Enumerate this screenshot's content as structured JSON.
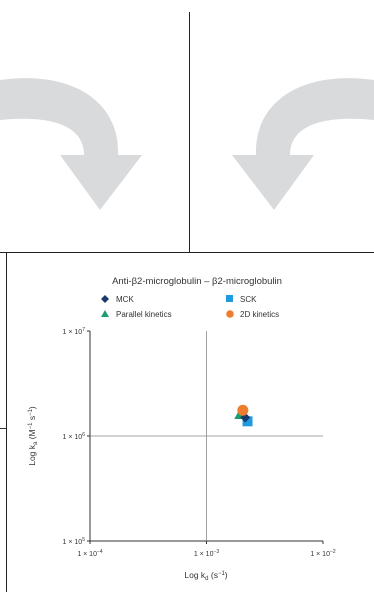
{
  "chart_data": {
    "type": "scatter",
    "title": "Anti-β2-microglobulin – β2-microglobulin",
    "xlabel": {
      "prefix": "Log k",
      "sub": "d",
      "suffix": " (s",
      "sup": "−1",
      "end": ")"
    },
    "ylabel": {
      "prefix": "Log k",
      "sub": "a",
      "suffix": " (M",
      "sup": "−1",
      "mid": " s",
      "sup2": "−1",
      "end": ")"
    },
    "x_scale": "log",
    "y_scale": "log",
    "xlim": [
      0.0001,
      0.01
    ],
    "ylim": [
      100000,
      10000000
    ],
    "x_ticks": [
      {
        "value": 0.0001,
        "base": "1 × 10",
        "exp": "−4"
      },
      {
        "value": 0.001,
        "base": "1 × 10",
        "exp": "−3"
      },
      {
        "value": 0.01,
        "base": "1 × 10",
        "exp": "−2"
      }
    ],
    "y_ticks": [
      {
        "value": 100000,
        "base": "1 × 10",
        "exp": "5"
      },
      {
        "value": 1000000,
        "base": "1 × 10",
        "exp": "6"
      },
      {
        "value": 10000000,
        "base": "1 × 10",
        "exp": "7"
      }
    ],
    "grid": "center lines",
    "legend_position": "top",
    "series": [
      {
        "name": "MCK",
        "marker": "diamond",
        "color": "#1b3a6b",
        "points": [
          {
            "x": 0.00215,
            "y": 1500000
          }
        ]
      },
      {
        "name": "SCK",
        "marker": "square",
        "color": "#1f9ae0",
        "points": [
          {
            "x": 0.00225,
            "y": 1380000
          }
        ]
      },
      {
        "name": "Parallel kinetics",
        "marker": "triangle",
        "color": "#1a9e6e",
        "points": [
          {
            "x": 0.00195,
            "y": 1620000
          }
        ]
      },
      {
        "name": "2D kinetics",
        "marker": "circle",
        "color": "#ef7d2d",
        "points": [
          {
            "x": 0.00205,
            "y": 1760000
          }
        ]
      }
    ]
  },
  "colors": {
    "arrow_fill": "#d9dadc",
    "axis": "#333333",
    "grid": "#888888"
  }
}
